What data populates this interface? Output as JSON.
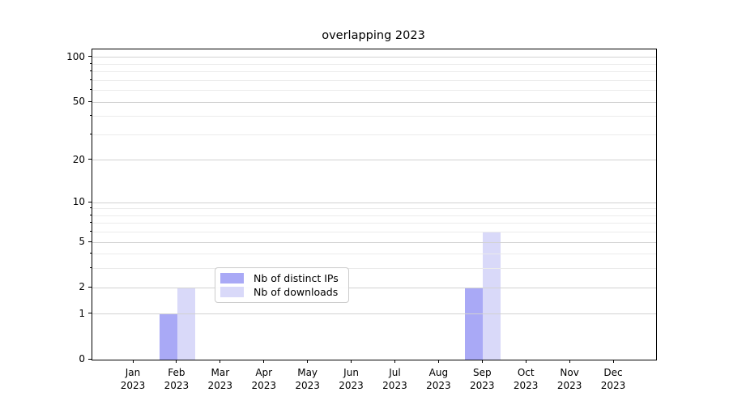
{
  "title": "overlapping 2023",
  "colors": {
    "bar_distinct_ips": "#a9a9f6",
    "bar_downloads": "#d9d9f9",
    "grid_major": "#d2d2d2",
    "grid_minor": "#ebebeb",
    "spine": "#000000",
    "legend_border": "#cccccc",
    "text": "#000000"
  },
  "legend": {
    "position": "lower center",
    "items": [
      {
        "label": "Nb of distinct IPs",
        "color": "#a9a9f6"
      },
      {
        "label": "Nb of downloads",
        "color": "#d9d9f9"
      }
    ]
  },
  "chart_data": {
    "type": "bar",
    "mode": "overlapping",
    "title": "overlapping 2023",
    "categories": [
      "Jan 2023",
      "Feb 2023",
      "Mar 2023",
      "Apr 2023",
      "May 2023",
      "Jun 2023",
      "Jul 2023",
      "Aug 2023",
      "Sep 2023",
      "Oct 2023",
      "Nov 2023",
      "Dec 2023"
    ],
    "series": [
      {
        "name": "Nb of distinct IPs",
        "color": "#a9a9f6",
        "values": [
          0,
          1,
          0,
          0,
          0,
          0,
          0,
          0,
          2,
          0,
          0,
          0
        ]
      },
      {
        "name": "Nb of downloads",
        "color": "#d9d9f9",
        "values": [
          0,
          2,
          0,
          0,
          0,
          0,
          0,
          0,
          6,
          0,
          0,
          0
        ]
      }
    ],
    "xlabel": "",
    "ylabel": "",
    "yscale": "log1p",
    "yticks_major": [
      0,
      1,
      2,
      5,
      10,
      20,
      50,
      100
    ],
    "yticks_minor": [
      3,
      4,
      6,
      7,
      8,
      9,
      30,
      40,
      60,
      70,
      80,
      90
    ],
    "ylim": [
      0,
      113
    ],
    "grid": true,
    "legend_position": "lower center"
  }
}
